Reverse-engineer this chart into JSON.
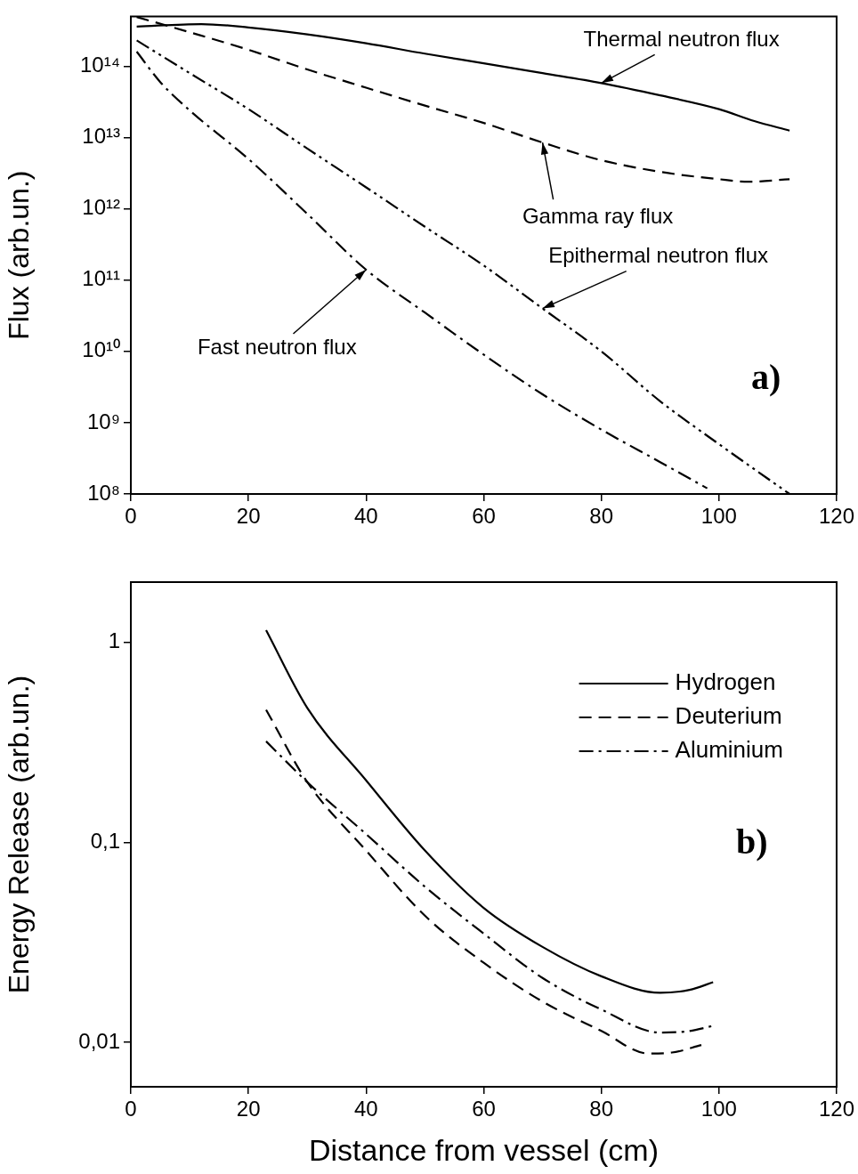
{
  "chart_data": [
    {
      "type": "line",
      "ylabel": "Flux (arb.un.)",
      "xlim": [
        0,
        120
      ],
      "xticks": [
        0,
        20,
        40,
        60,
        80,
        100,
        120
      ],
      "ylim": [
        100000000.0,
        500000000000000.0
      ],
      "yticks": [
        {
          "value": 100000000.0,
          "label": "10⁸"
        },
        {
          "value": 1000000000.0,
          "label": "10⁹"
        },
        {
          "value": 10000000000.0,
          "label": "10¹⁰"
        },
        {
          "value": 100000000000.0,
          "label": "10¹¹"
        },
        {
          "value": 1000000000000.0,
          "label": "10¹²"
        },
        {
          "value": 10000000000000.0,
          "label": "10¹³"
        },
        {
          "value": 100000000000000.0,
          "label": "10¹⁴"
        }
      ],
      "log": "y",
      "grid": false,
      "annotations": [
        "a)"
      ],
      "series": [
        {
          "name": "Thermal neutron flux",
          "color": "#000000",
          "line_style": "solid",
          "x": [
            1,
            12,
            20,
            30,
            40,
            50,
            60,
            70,
            80,
            90,
            100,
            106,
            112
          ],
          "values": [
            360000000000000.0,
            390000000000000.0,
            350000000000000.0,
            280000000000000.0,
            210000000000000.0,
            150000000000000.0,
            110000000000000.0,
            80000000000000.0,
            58000000000000.0,
            39000000000000.0,
            25000000000000.0,
            17000000000000.0,
            12500000000000.0
          ]
        },
        {
          "name": "Gamma ray flux",
          "color": "#000000",
          "line_style": "dashed",
          "x": [
            1,
            10,
            20,
            30,
            40,
            50,
            60,
            70,
            80,
            90,
            100,
            105,
            112
          ],
          "values": [
            490000000000000.0,
            300000000000000.0,
            170000000000000.0,
            90000000000000.0,
            50000000000000.0,
            28000000000000.0,
            16000000000000.0,
            8500000000000.0,
            4800000000000.0,
            3300000000000.0,
            2600000000000.0,
            2400000000000.0,
            2600000000000.0
          ]
        },
        {
          "name": "Epithermal neutron flux",
          "color": "#000000",
          "line_style": "dashdotdot",
          "x": [
            1,
            10,
            20,
            30,
            40,
            50,
            60,
            70,
            80,
            90,
            100,
            112
          ],
          "values": [
            230000000000000.0,
            80000000000000.0,
            25000000000000.0,
            7000000000000.0,
            2000000000000.0,
            560000000000.0,
            160000000000.0,
            40000000000.0,
            10000000000.0,
            2000000000.0,
            500000000.0,
            100000000.0
          ]
        },
        {
          "name": "Fast neutron flux",
          "color": "#000000",
          "line_style": "dashdot",
          "x": [
            1,
            5,
            10,
            20,
            30,
            40,
            50,
            60,
            70,
            80,
            90,
            98
          ],
          "values": [
            160000000000000.0,
            60000000000000.0,
            24000000000000.0,
            5000000000000.0,
            850000000000.0,
            140000000000.0,
            35000000000.0,
            9000000000.0,
            2500000000.0,
            800000000.0,
            280000000.0,
            120000000.0
          ]
        }
      ]
    },
    {
      "type": "line",
      "ylabel": "Energy Release (arb.un.)",
      "xlabel": "Distance from vessel (cm)",
      "xlim": [
        0,
        120
      ],
      "xticks": [
        0,
        20,
        40,
        60,
        80,
        100,
        120
      ],
      "ylim": [
        0.006,
        2
      ],
      "yticks": [
        {
          "value": 0.01,
          "label": "0,01"
        },
        {
          "value": 0.1,
          "label": "0,1"
        },
        1
      ],
      "log": "y",
      "grid": false,
      "legend": "top right",
      "annotations": [
        "b)"
      ],
      "series": [
        {
          "name": "Hydrogen",
          "color": "#000000",
          "line_style": "solid",
          "x": [
            23,
            30,
            40,
            50,
            60,
            70,
            80,
            90,
            95,
            99
          ],
          "values": [
            1.15,
            0.47,
            0.204,
            0.091,
            0.047,
            0.03,
            0.0214,
            0.0177,
            0.0183,
            0.02
          ]
        },
        {
          "name": "Deuterium",
          "color": "#000000",
          "line_style": "dashed",
          "x": [
            23,
            30,
            40,
            50,
            60,
            70,
            80,
            88,
            92,
            97
          ],
          "values": [
            0.46,
            0.2,
            0.091,
            0.043,
            0.025,
            0.016,
            0.0114,
            0.0088,
            0.0089,
            0.0097
          ]
        },
        {
          "name": "Aluminium",
          "color": "#000000",
          "line_style": "dashdot",
          "x": [
            23,
            30,
            40,
            50,
            60,
            70,
            80,
            90,
            95,
            99
          ],
          "values": [
            0.32,
            0.2,
            0.11,
            0.06,
            0.035,
            0.021,
            0.0146,
            0.0112,
            0.0114,
            0.0121
          ]
        }
      ]
    }
  ]
}
